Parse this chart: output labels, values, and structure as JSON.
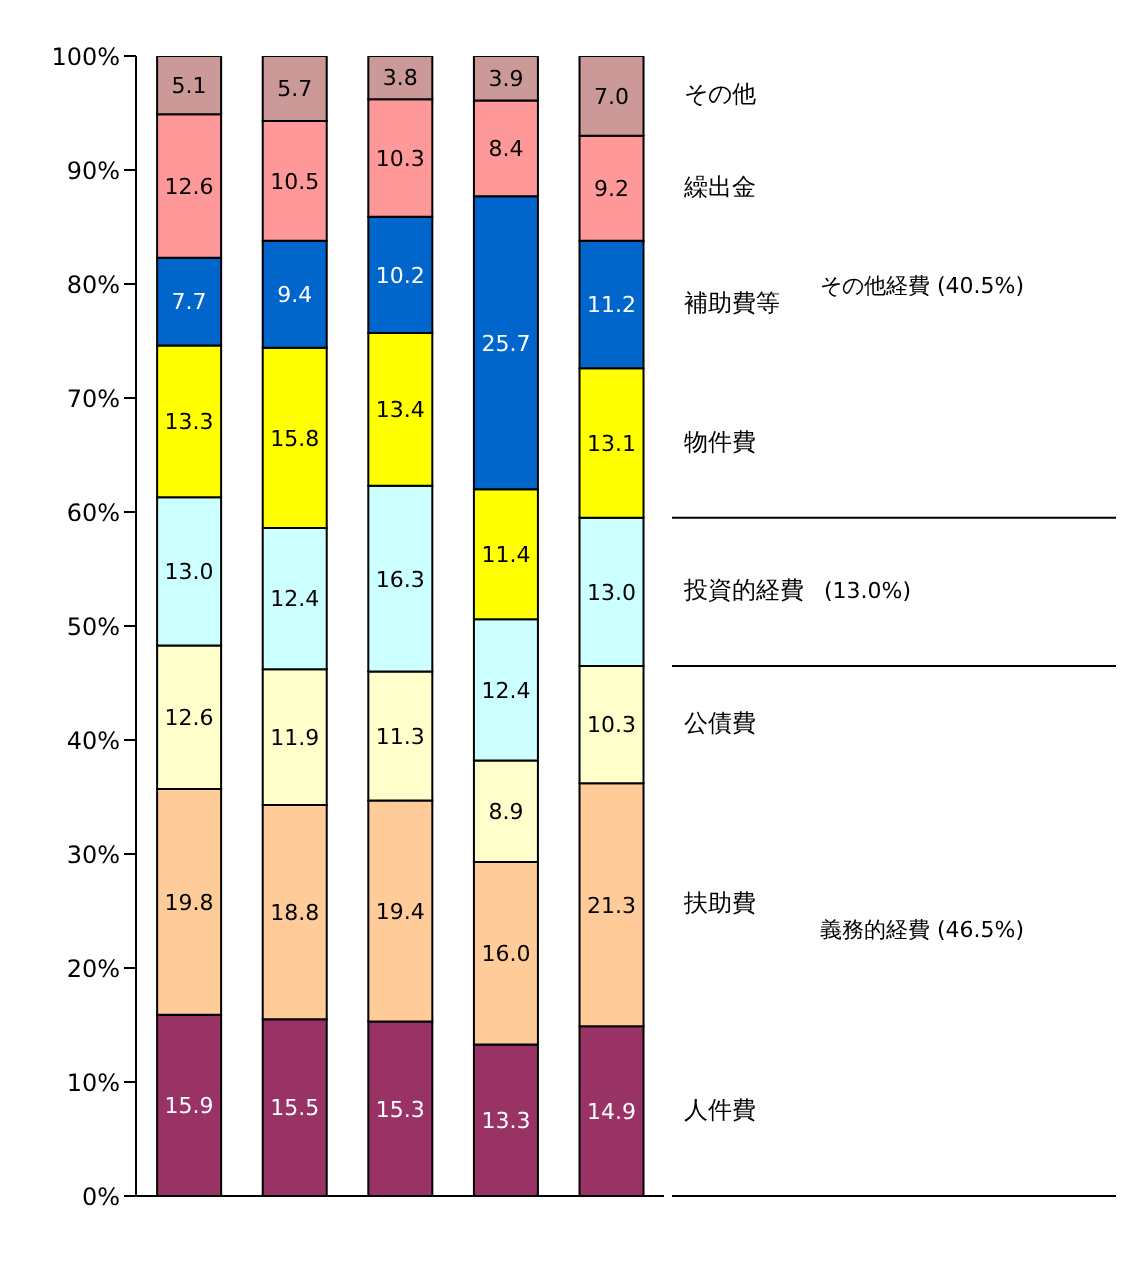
{
  "chart_data": {
    "type": "bar",
    "stacked": true,
    "categories": [
      null,
      null,
      null,
      null,
      null
    ],
    "ylim": [
      0,
      100
    ],
    "yticks": [
      {
        "value": 0,
        "label": "0%"
      },
      {
        "value": 10,
        "label": "10%"
      },
      {
        "value": 20,
        "label": "20%"
      },
      {
        "value": 30,
        "label": "30%"
      },
      {
        "value": 40,
        "label": "40%"
      },
      {
        "value": 50,
        "label": "50%"
      },
      {
        "value": 60,
        "label": "60%"
      },
      {
        "value": 70,
        "label": "70%"
      },
      {
        "value": 80,
        "label": "80%"
      },
      {
        "value": 90,
        "label": "90%"
      },
      {
        "value": 100,
        "label": "100%"
      }
    ],
    "series": [
      {
        "name": "人件費",
        "color": "#993366",
        "values": [
          15.9,
          15.5,
          15.3,
          13.3,
          14.9
        ],
        "value_labels": [
          "15.9",
          "15.5",
          "15.3",
          "13.3",
          "14.9"
        ]
      },
      {
        "name": "扶助費",
        "color": "#ffcc99",
        "values": [
          19.8,
          18.8,
          19.4,
          16.0,
          21.3
        ],
        "value_labels": [
          "19.8",
          "18.8",
          "19.4",
          "16.0",
          "21.3"
        ]
      },
      {
        "name": "公債費",
        "color": "#ffffcc",
        "values": [
          12.6,
          11.9,
          11.3,
          8.9,
          10.3
        ],
        "value_labels": [
          "12.6",
          "11.9",
          "11.3",
          "8.9",
          "10.3"
        ]
      },
      {
        "name": "投資的経費",
        "color": "#ccffff",
        "values": [
          13.0,
          12.4,
          16.3,
          12.4,
          13.0
        ],
        "value_labels": [
          "13.0",
          "12.4",
          "16.3",
          "12.4",
          "13.0"
        ]
      },
      {
        "name": "物件費",
        "color": "#ffff00",
        "values": [
          13.3,
          15.8,
          13.4,
          11.4,
          13.1
        ],
        "value_labels": [
          "13.3",
          "15.8",
          "13.4",
          "11.4",
          "13.1"
        ]
      },
      {
        "name": "補助費等",
        "color": "#0066cc",
        "values": [
          7.7,
          9.4,
          10.2,
          25.7,
          11.2
        ],
        "value_labels": [
          "7.7",
          "9.4",
          "10.2",
          "25.7",
          "11.2"
        ]
      },
      {
        "name": "繰出金",
        "color": "#ff9999",
        "values": [
          12.6,
          10.5,
          10.3,
          8.4,
          9.2
        ],
        "value_labels": [
          "12.6",
          "10.5",
          "10.3",
          "8.4",
          "9.2"
        ]
      },
      {
        "name": "その他",
        "color": "#cc9999",
        "values": [
          5.1,
          5.7,
          3.8,
          3.9,
          7.0
        ],
        "value_labels": [
          "5.1",
          "5.7",
          "3.8",
          "3.9",
          "7.0"
        ]
      }
    ],
    "annotations": [
      "義務的経費 (46.5%)",
      "(13.0%)",
      "その他経費 (40.5%)"
    ]
  }
}
